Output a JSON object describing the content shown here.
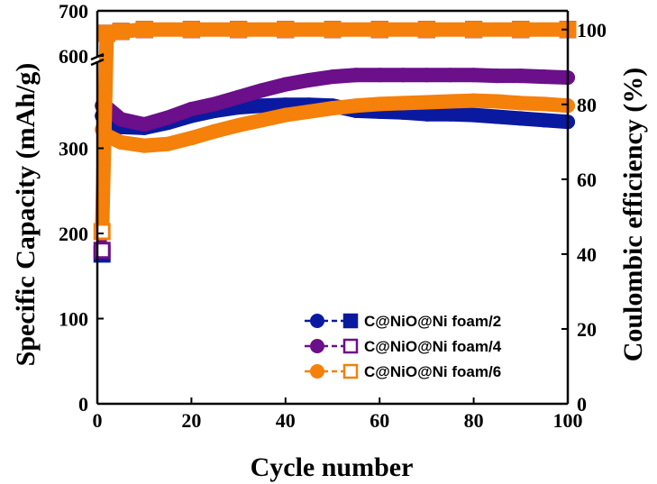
{
  "chart_data": {
    "type": "scatter",
    "xlabel": "Cycle number",
    "ylabel_left": "Specific Capacity (mAh/g)",
    "ylabel_right": "Coulombic efficiency (%)",
    "xlim": [
      0,
      100
    ],
    "xticks": [
      0,
      20,
      40,
      60,
      80,
      100
    ],
    "ylim_left_lower": [
      0,
      400
    ],
    "ylim_left_upper": [
      600,
      700
    ],
    "yticks_left_lower": [
      0,
      100,
      200,
      300
    ],
    "yticks_left_upper": [
      600,
      700
    ],
    "ylim_right": [
      0,
      105
    ],
    "yticks_right": [
      0,
      20,
      40,
      60,
      80,
      100
    ],
    "axis_break": "left axis broken between ~390 and 600 mAh/g",
    "legend_position": "bottom-right",
    "grid": false,
    "series": [
      {
        "name": "C@NiO@Ni foam/2",
        "color": "#0a1aa0",
        "marker_capacity": "filled-circle",
        "marker_efficiency": "filled-square",
        "capacity": {
          "x": [
            1,
            2,
            5,
            10,
            15,
            20,
            25,
            30,
            35,
            40,
            45,
            50,
            55,
            60,
            65,
            70,
            75,
            80,
            85,
            90,
            95,
            100
          ],
          "y": [
            338,
            331,
            325,
            324,
            330,
            338,
            344,
            348,
            350,
            351,
            351,
            350,
            344,
            343,
            342,
            340,
            340,
            339,
            337,
            335,
            333,
            331
          ]
        },
        "efficiency": {
          "x": [
            1,
            2,
            5,
            10,
            20,
            30,
            40,
            50,
            60,
            70,
            80,
            90,
            100
          ],
          "y": [
            40,
            99,
            99.5,
            100,
            100,
            100,
            100,
            100,
            100,
            100,
            100,
            100,
            100
          ]
        }
      },
      {
        "name": "C@NiO@Ni foam/4",
        "color": "#6b0f8a",
        "marker_capacity": "filled-circle",
        "marker_efficiency": "open-square",
        "capacity": {
          "x": [
            1,
            2,
            5,
            10,
            15,
            20,
            25,
            30,
            35,
            40,
            45,
            50,
            55,
            60,
            65,
            70,
            75,
            80,
            85,
            90,
            95,
            100
          ],
          "y": [
            350,
            348,
            334,
            328,
            336,
            346,
            352,
            360,
            368,
            375,
            380,
            384,
            386,
            386,
            386,
            386,
            386,
            386,
            385,
            385,
            384,
            383
          ]
        },
        "efficiency": {
          "x": [
            1,
            2,
            5,
            10,
            20,
            30,
            40,
            50,
            60,
            70,
            80,
            90,
            100
          ],
          "y": [
            41,
            99,
            99.5,
            100,
            100,
            100,
            100,
            100,
            100,
            100,
            100,
            100,
            100
          ]
        }
      },
      {
        "name": "C@NiO@Ni foam/6",
        "color": "#f5800a",
        "marker_capacity": "filled-circle",
        "marker_efficiency": "open-square",
        "capacity": {
          "x": [
            1,
            2,
            5,
            10,
            15,
            20,
            25,
            30,
            35,
            40,
            45,
            50,
            55,
            60,
            65,
            70,
            75,
            80,
            85,
            90,
            95,
            100
          ],
          "y": [
            322,
            315,
            307,
            303,
            305,
            312,
            320,
            327,
            333,
            339,
            343,
            347,
            350,
            352,
            353,
            354,
            355,
            356,
            355,
            353,
            352,
            350
          ]
        },
        "efficiency": {
          "x": [
            1,
            2,
            5,
            10,
            20,
            30,
            40,
            50,
            60,
            70,
            80,
            90,
            100
          ],
          "y": [
            46,
            99,
            99.5,
            100,
            100,
            100,
            100,
            100,
            100,
            100,
            100,
            100,
            100
          ]
        }
      }
    ]
  }
}
